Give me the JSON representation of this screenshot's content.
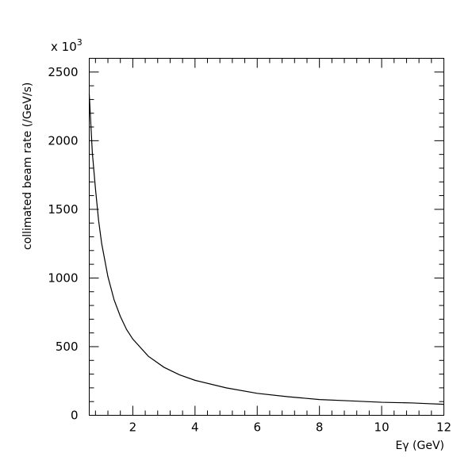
{
  "chart_data": {
    "type": "line",
    "title": "",
    "xlabel": "Eγ (GeV)",
    "ylabel": "collimated beam rate (/GeV/s)",
    "y_multiplier": "x 10",
    "y_multiplier_exponent": "3",
    "xlim": [
      0.6,
      12
    ],
    "ylim": [
      0,
      2600
    ],
    "x_ticks": [
      2,
      4,
      6,
      8,
      10,
      12
    ],
    "x_tick_labels": [
      "2",
      "4",
      "6",
      "8",
      "10",
      "12"
    ],
    "y_ticks": [
      0,
      500,
      1000,
      1500,
      2000,
      2500
    ],
    "y_tick_labels": [
      "0",
      "500",
      "1000",
      "1500",
      "2000",
      "2500"
    ],
    "grid": false,
    "series": [
      {
        "x": [
          0.6,
          0.7,
          0.8,
          0.9,
          1.0,
          1.2,
          1.4,
          1.6,
          1.8,
          2.0,
          2.5,
          3.0,
          3.5,
          4.0,
          5.0,
          6.0,
          7.0,
          8.0,
          9.0,
          10.0,
          11.0,
          12.0
        ],
        "y": [
          2340,
          1910,
          1650,
          1420,
          1250,
          1010,
          840,
          720,
          625,
          555,
          430,
          350,
          295,
          255,
          200,
          160,
          135,
          115,
          105,
          95,
          90,
          80
        ]
      }
    ]
  }
}
